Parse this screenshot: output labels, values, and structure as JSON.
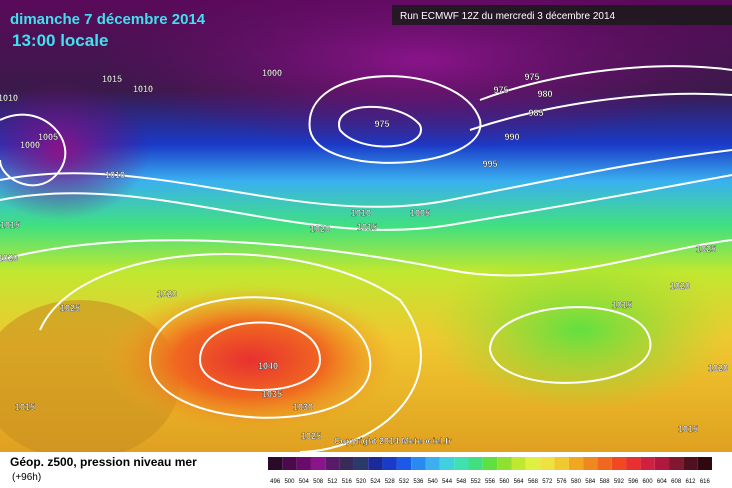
{
  "header": {
    "date": "dimanche 7 décembre 2014",
    "time": "13:00 locale",
    "run": "Run ECMWF 12Z du mercredi 3 décembre 2014"
  },
  "footer": {
    "field": "Géop. z500, pression niveau mer",
    "lead": "(+96h)",
    "copyright": "Copyright 2014 Meteociel.fr"
  },
  "isobars": [
    "1015",
    "1010",
    "1000",
    "975",
    "975",
    "980",
    "985",
    "990",
    "975",
    "995",
    "1010",
    "1005",
    "1000",
    "1010",
    "1015",
    "1020",
    "1010",
    "1005",
    "1015",
    "1020",
    "1020",
    "1025",
    "1040",
    "1035",
    "1030",
    "1025",
    "1015",
    "1025",
    "1020",
    "1015",
    "1020",
    "1015"
  ],
  "colorbar": {
    "values": [
      496,
      500,
      504,
      508,
      512,
      516,
      520,
      524,
      528,
      532,
      536,
      540,
      544,
      548,
      552,
      556,
      560,
      564,
      568,
      572,
      576,
      580,
      584,
      588,
      592,
      596,
      600,
      604,
      608,
      612,
      616
    ],
    "colors": [
      "#2a0a2a",
      "#4b0a4b",
      "#6a0a6a",
      "#8a148a",
      "#5a1a6a",
      "#3a2a5a",
      "#2a3a6a",
      "#1a2a9a",
      "#1a3ac8",
      "#1a5ae8",
      "#2a8af0",
      "#3ab0f0",
      "#40d0e0",
      "#40e0b0",
      "#40e080",
      "#60e040",
      "#90e030",
      "#c0e830",
      "#e0f040",
      "#f0e040",
      "#f0c830",
      "#f0a820",
      "#f08820",
      "#f06820",
      "#f04820",
      "#e83030",
      "#d02040",
      "#b01840",
      "#801830",
      "#501020",
      "#300810"
    ]
  }
}
